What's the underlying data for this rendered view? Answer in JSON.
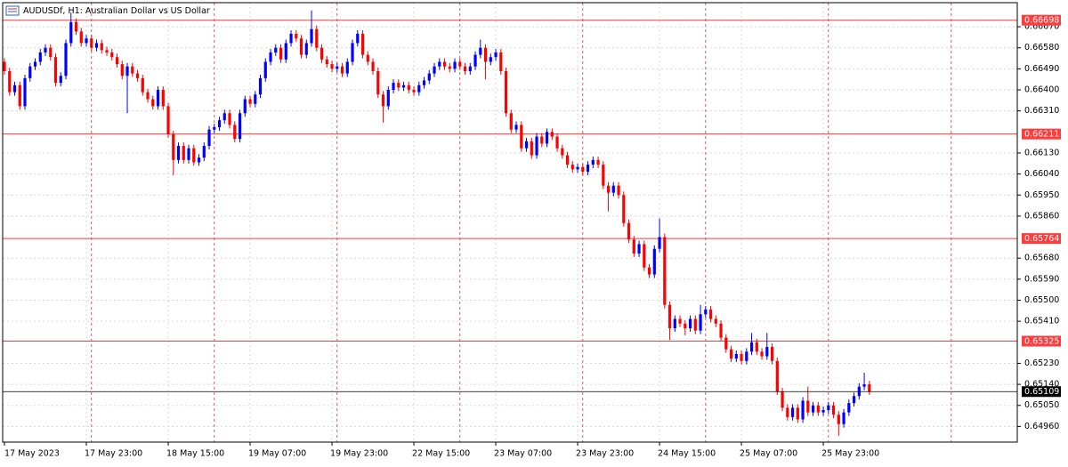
{
  "chart_data": {
    "type": "candlestick",
    "title": "AUDUSDf, H1:  Australian Dollar vs US Dollar",
    "bull_color": "#0000ff",
    "bear_color": "#ff0000",
    "grid": true,
    "ylim": [
      0.64893,
      0.66773
    ],
    "yticks": [
      {
        "value": 0.6667,
        "label": "0.66670"
      },
      {
        "value": 0.6658,
        "label": "0.66580"
      },
      {
        "value": 0.6649,
        "label": "0.66490"
      },
      {
        "value": 0.664,
        "label": "0.66400"
      },
      {
        "value": 0.6631,
        "label": "0.66310"
      },
      {
        "value": 0.6613,
        "label": "0.66130"
      },
      {
        "value": 0.6604,
        "label": "0.66040"
      },
      {
        "value": 0.6595,
        "label": "0.65950"
      },
      {
        "value": 0.6586,
        "label": "0.65860"
      },
      {
        "value": 0.6568,
        "label": "0.65680"
      },
      {
        "value": 0.6559,
        "label": "0.65590"
      },
      {
        "value": 0.655,
        "label": "0.65500"
      },
      {
        "value": 0.6541,
        "label": "0.65410"
      },
      {
        "value": 0.6523,
        "label": "0.65230"
      },
      {
        "value": 0.6514,
        "label": "0.65140"
      },
      {
        "value": 0.6505,
        "label": "0.65050"
      },
      {
        "value": 0.6496,
        "label": "0.64960"
      }
    ],
    "xlim": [
      -0.35,
      197.9
    ],
    "xticks": [
      {
        "value": 0,
        "label": "17 May 2023"
      },
      {
        "value": 16,
        "label": "17 May 23:00"
      },
      {
        "value": 32,
        "label": "18 May 15:00"
      },
      {
        "value": 48,
        "label": "19 May 07:00"
      },
      {
        "value": 64,
        "label": "19 May 23:00"
      },
      {
        "value": 80,
        "label": "22 May 15:00"
      },
      {
        "value": 96,
        "label": "23 May 07:00"
      },
      {
        "value": 112,
        "label": "23 May 23:00"
      },
      {
        "value": 128,
        "label": "24 May 15:00"
      },
      {
        "value": 144,
        "label": "25 May 07:00"
      },
      {
        "value": 160,
        "label": "25 May 23:00"
      }
    ],
    "separators": [
      17,
      41,
      65,
      89,
      113,
      137,
      161,
      185
    ],
    "separator_color": "#e03030",
    "levels": [
      0.66698,
      0.66211,
      0.65764,
      0.65325
    ],
    "level_color": "#ff3b3b",
    "current_price": 0.65109,
    "current_color": "#000000",
    "candles": [
      [
        0.6652,
        0.66535,
        0.66465,
        0.6648
      ],
      [
        0.6648,
        0.66495,
        0.66375,
        0.6639
      ],
      [
        0.6639,
        0.66435,
        0.66375,
        0.6642
      ],
      [
        0.6642,
        0.66435,
        0.66315,
        0.6633
      ],
      [
        0.6633,
        0.66465,
        0.66315,
        0.6645
      ],
      [
        0.6645,
        0.66515,
        0.66435,
        0.665
      ],
      [
        0.665,
        0.66535,
        0.66485,
        0.6652
      ],
      [
        0.6652,
        0.66575,
        0.66505,
        0.6656
      ],
      [
        0.6656,
        0.66595,
        0.66545,
        0.6658
      ],
      [
        0.6658,
        0.66595,
        0.66525,
        0.6654
      ],
      [
        0.6654,
        0.66555,
        0.66415,
        0.6643
      ],
      [
        0.6643,
        0.66475,
        0.66415,
        0.6646
      ],
      [
        0.6646,
        0.66615,
        0.66445,
        0.666
      ],
      [
        0.666,
        0.6673,
        0.66585,
        0.6669
      ],
      [
        0.6669,
        0.66705,
        0.66635,
        0.6665
      ],
      [
        0.6665,
        0.66665,
        0.66585,
        0.666
      ],
      [
        0.666,
        0.66635,
        0.66585,
        0.6662
      ],
      [
        0.6662,
        0.66635,
        0.66565,
        0.6658
      ],
      [
        0.6658,
        0.66615,
        0.66565,
        0.666
      ],
      [
        0.666,
        0.66615,
        0.66555,
        0.6657
      ],
      [
        0.6657,
        0.66585,
        0.66545,
        0.6656
      ],
      [
        0.6656,
        0.66575,
        0.66525,
        0.6654
      ],
      [
        0.6654,
        0.66555,
        0.66495,
        0.6651
      ],
      [
        0.6651,
        0.66525,
        0.66445,
        0.6646
      ],
      [
        0.6646,
        0.66515,
        0.663,
        0.665
      ],
      [
        0.665,
        0.66515,
        0.66455,
        0.6647
      ],
      [
        0.6647,
        0.66485,
        0.66435,
        0.6645
      ],
      [
        0.6645,
        0.66465,
        0.66375,
        0.6639
      ],
      [
        0.6639,
        0.66405,
        0.66345,
        0.6636
      ],
      [
        0.6636,
        0.66375,
        0.66315,
        0.6633
      ],
      [
        0.6633,
        0.66415,
        0.66315,
        0.664
      ],
      [
        0.664,
        0.66415,
        0.66315,
        0.6633
      ],
      [
        0.6633,
        0.66345,
        0.66195,
        0.6621
      ],
      [
        0.6621,
        0.66225,
        0.66035,
        0.661
      ],
      [
        0.661,
        0.66175,
        0.66085,
        0.6616
      ],
      [
        0.6616,
        0.66175,
        0.66085,
        0.661
      ],
      [
        0.661,
        0.66165,
        0.66085,
        0.6615
      ],
      [
        0.6615,
        0.66165,
        0.66075,
        0.6609
      ],
      [
        0.6609,
        0.66125,
        0.66075,
        0.6611
      ],
      [
        0.6611,
        0.66175,
        0.66095,
        0.6616
      ],
      [
        0.6616,
        0.66245,
        0.66145,
        0.6623
      ],
      [
        0.6623,
        0.66255,
        0.66215,
        0.6624
      ],
      [
        0.6624,
        0.66285,
        0.66225,
        0.6627
      ],
      [
        0.6627,
        0.66315,
        0.66255,
        0.663
      ],
      [
        0.663,
        0.66315,
        0.66235,
        0.6625
      ],
      [
        0.6625,
        0.66265,
        0.66175,
        0.6619
      ],
      [
        0.6619,
        0.66315,
        0.66175,
        0.663
      ],
      [
        0.663,
        0.66375,
        0.66285,
        0.6636
      ],
      [
        0.6636,
        0.66375,
        0.66325,
        0.6634
      ],
      [
        0.6634,
        0.66395,
        0.66325,
        0.6638
      ],
      [
        0.6638,
        0.66465,
        0.66365,
        0.6645
      ],
      [
        0.6645,
        0.66535,
        0.66435,
        0.6652
      ],
      [
        0.6652,
        0.66575,
        0.66505,
        0.6656
      ],
      [
        0.6656,
        0.66595,
        0.66545,
        0.6658
      ],
      [
        0.6658,
        0.66595,
        0.66515,
        0.6653
      ],
      [
        0.6653,
        0.66615,
        0.66515,
        0.666
      ],
      [
        0.666,
        0.66655,
        0.66585,
        0.6664
      ],
      [
        0.6664,
        0.66655,
        0.66605,
        0.6662
      ],
      [
        0.6662,
        0.66635,
        0.66535,
        0.6655
      ],
      [
        0.6655,
        0.66615,
        0.66535,
        0.666
      ],
      [
        0.666,
        0.6674,
        0.66585,
        0.6666
      ],
      [
        0.6666,
        0.66675,
        0.66565,
        0.6658
      ],
      [
        0.6658,
        0.66595,
        0.66515,
        0.6653
      ],
      [
        0.6653,
        0.66545,
        0.66495,
        0.6651
      ],
      [
        0.6651,
        0.66525,
        0.66475,
        0.6649
      ],
      [
        0.6649,
        0.66515,
        0.66475,
        0.665
      ],
      [
        0.665,
        0.66515,
        0.66455,
        0.6647
      ],
      [
        0.6647,
        0.66535,
        0.66455,
        0.6652
      ],
      [
        0.6652,
        0.66615,
        0.66505,
        0.666
      ],
      [
        0.666,
        0.66655,
        0.66585,
        0.6664
      ],
      [
        0.6664,
        0.66655,
        0.66535,
        0.6655
      ],
      [
        0.6655,
        0.66565,
        0.66505,
        0.6652
      ],
      [
        0.6652,
        0.66535,
        0.66465,
        0.6648
      ],
      [
        0.6648,
        0.66495,
        0.66365,
        0.6638
      ],
      [
        0.6638,
        0.66395,
        0.6626,
        0.6633
      ],
      [
        0.6633,
        0.66415,
        0.66315,
        0.664
      ],
      [
        0.664,
        0.66445,
        0.66385,
        0.6643
      ],
      [
        0.6643,
        0.66445,
        0.66395,
        0.6641
      ],
      [
        0.6641,
        0.66435,
        0.66395,
        0.6642
      ],
      [
        0.6642,
        0.66435,
        0.66385,
        0.664
      ],
      [
        0.664,
        0.66415,
        0.66375,
        0.6639
      ],
      [
        0.6639,
        0.66435,
        0.66375,
        0.6642
      ],
      [
        0.6642,
        0.66455,
        0.66405,
        0.6644
      ],
      [
        0.6644,
        0.66485,
        0.66425,
        0.6647
      ],
      [
        0.6647,
        0.66515,
        0.66455,
        0.665
      ],
      [
        0.665,
        0.66535,
        0.66485,
        0.6652
      ],
      [
        0.6652,
        0.66535,
        0.66485,
        0.665
      ],
      [
        0.665,
        0.66515,
        0.66475,
        0.6649
      ],
      [
        0.6649,
        0.66535,
        0.66475,
        0.6652
      ],
      [
        0.6652,
        0.66535,
        0.66485,
        0.665
      ],
      [
        0.665,
        0.66515,
        0.66465,
        0.6648
      ],
      [
        0.6648,
        0.66515,
        0.66465,
        0.665
      ],
      [
        0.665,
        0.66565,
        0.66485,
        0.6655
      ],
      [
        0.6655,
        0.66615,
        0.66535,
        0.6658
      ],
      [
        0.6658,
        0.66595,
        0.66445,
        0.6652
      ],
      [
        0.6652,
        0.66555,
        0.66505,
        0.6654
      ],
      [
        0.6654,
        0.66575,
        0.66525,
        0.6656
      ],
      [
        0.6656,
        0.66575,
        0.66465,
        0.6648
      ],
      [
        0.6648,
        0.66495,
        0.66285,
        0.663
      ],
      [
        0.663,
        0.66315,
        0.66215,
        0.6623
      ],
      [
        0.6623,
        0.66265,
        0.66215,
        0.6625
      ],
      [
        0.6625,
        0.66265,
        0.66135,
        0.6615
      ],
      [
        0.6615,
        0.66195,
        0.66135,
        0.6618
      ],
      [
        0.6618,
        0.66195,
        0.66105,
        0.6612
      ],
      [
        0.6612,
        0.66215,
        0.66105,
        0.662
      ],
      [
        0.662,
        0.66215,
        0.66155,
        0.6617
      ],
      [
        0.6617,
        0.66235,
        0.66155,
        0.6622
      ],
      [
        0.6622,
        0.66235,
        0.66185,
        0.662
      ],
      [
        0.662,
        0.66215,
        0.66135,
        0.6615
      ],
      [
        0.6615,
        0.66165,
        0.66105,
        0.6612
      ],
      [
        0.6612,
        0.66135,
        0.66065,
        0.6608
      ],
      [
        0.6608,
        0.66095,
        0.66045,
        0.6606
      ],
      [
        0.6606,
        0.66085,
        0.66045,
        0.6607
      ],
      [
        0.6607,
        0.66085,
        0.66035,
        0.6605
      ],
      [
        0.6605,
        0.66095,
        0.66035,
        0.6608
      ],
      [
        0.6608,
        0.66115,
        0.66065,
        0.661
      ],
      [
        0.661,
        0.66115,
        0.66065,
        0.6608
      ],
      [
        0.6608,
        0.66095,
        0.65975,
        0.6599
      ],
      [
        0.6599,
        0.66005,
        0.6588,
        0.6596
      ],
      [
        0.6596,
        0.66005,
        0.65945,
        0.6599
      ],
      [
        0.6599,
        0.66005,
        0.65935,
        0.6595
      ],
      [
        0.6595,
        0.65965,
        0.65815,
        0.6583
      ],
      [
        0.6583,
        0.65845,
        0.65745,
        0.6576
      ],
      [
        0.6576,
        0.65775,
        0.65685,
        0.657
      ],
      [
        0.657,
        0.65755,
        0.65685,
        0.6574
      ],
      [
        0.6574,
        0.65755,
        0.65625,
        0.6564
      ],
      [
        0.6564,
        0.65655,
        0.65595,
        0.6561
      ],
      [
        0.6561,
        0.65735,
        0.65595,
        0.6572
      ],
      [
        0.6572,
        0.6585,
        0.65705,
        0.6577
      ],
      [
        0.6577,
        0.65785,
        0.65465,
        0.6548
      ],
      [
        0.6548,
        0.65495,
        0.6533,
        0.6538
      ],
      [
        0.6538,
        0.65435,
        0.65365,
        0.6542
      ],
      [
        0.6542,
        0.65435,
        0.65385,
        0.654
      ],
      [
        0.654,
        0.65415,
        0.6535,
        0.6538
      ],
      [
        0.6538,
        0.65435,
        0.65365,
        0.6542
      ],
      [
        0.6542,
        0.65435,
        0.65355,
        0.6537
      ],
      [
        0.6537,
        0.6548,
        0.65355,
        0.6544
      ],
      [
        0.6544,
        0.65475,
        0.65425,
        0.6546
      ],
      [
        0.6546,
        0.65475,
        0.65405,
        0.6542
      ],
      [
        0.6542,
        0.65435,
        0.65385,
        0.654
      ],
      [
        0.654,
        0.65415,
        0.65325,
        0.6534
      ],
      [
        0.6534,
        0.65355,
        0.65275,
        0.6529
      ],
      [
        0.6529,
        0.65305,
        0.65235,
        0.6525
      ],
      [
        0.6525,
        0.65285,
        0.65235,
        0.6527
      ],
      [
        0.6527,
        0.65285,
        0.65225,
        0.6524
      ],
      [
        0.6524,
        0.65295,
        0.65225,
        0.6528
      ],
      [
        0.6528,
        0.6536,
        0.65265,
        0.6532
      ],
      [
        0.6532,
        0.65335,
        0.65265,
        0.6528
      ],
      [
        0.6528,
        0.65295,
        0.65245,
        0.6526
      ],
      [
        0.6526,
        0.6536,
        0.65245,
        0.653
      ],
      [
        0.653,
        0.65315,
        0.65225,
        0.6524
      ],
      [
        0.6524,
        0.65255,
        0.65095,
        0.6511
      ],
      [
        0.6511,
        0.65125,
        0.65025,
        0.6504
      ],
      [
        0.6504,
        0.65055,
        0.64985,
        0.65
      ],
      [
        0.65,
        0.65055,
        0.64985,
        0.6504
      ],
      [
        0.6504,
        0.65055,
        0.64975,
        0.6499
      ],
      [
        0.6499,
        0.65085,
        0.64975,
        0.6507
      ],
      [
        0.6507,
        0.6513,
        0.65005,
        0.6502
      ],
      [
        0.6502,
        0.65065,
        0.65005,
        0.6505
      ],
      [
        0.6505,
        0.65065,
        0.65005,
        0.6502
      ],
      [
        0.6502,
        0.65045,
        0.65005,
        0.6503
      ],
      [
        0.6503,
        0.65065,
        0.65015,
        0.6505
      ],
      [
        0.6505,
        0.65065,
        0.64995,
        0.6501
      ],
      [
        0.6501,
        0.65025,
        0.6492,
        0.6497
      ],
      [
        0.6497,
        0.65035,
        0.64955,
        0.6502
      ],
      [
        0.6502,
        0.65075,
        0.65005,
        0.6506
      ],
      [
        0.6506,
        0.65105,
        0.65045,
        0.6509
      ],
      [
        0.6509,
        0.65145,
        0.65075,
        0.6513
      ],
      [
        0.6513,
        0.6519,
        0.65115,
        0.6514
      ],
      [
        0.6514,
        0.65155,
        0.65095,
        0.65109
      ]
    ]
  }
}
